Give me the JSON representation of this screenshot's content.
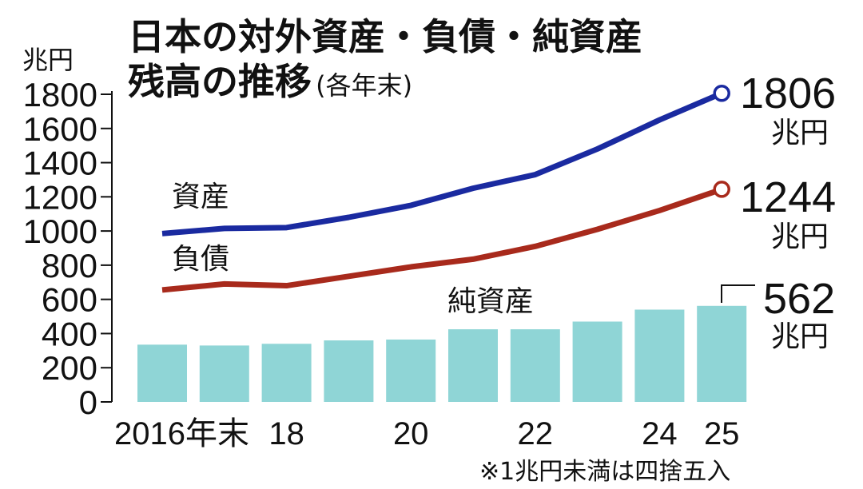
{
  "chart_data": {
    "type": "bar+line",
    "title_line1": "日本の対外資産・負債・純資産",
    "title_line2": "残高の推移",
    "title_suffix": "(各年末)",
    "ylabel": "兆円",
    "ylim": [
      0,
      1800
    ],
    "yticks": [
      0,
      200,
      400,
      600,
      800,
      1000,
      1200,
      1400,
      1600,
      1800
    ],
    "grid": false,
    "years": [
      2016,
      2017,
      2018,
      2019,
      2020,
      2021,
      2022,
      2023,
      2024,
      2025
    ],
    "x_tick_labels": [
      {
        "year": 2016,
        "label": "2016年末"
      },
      {
        "year": 2018,
        "label": "18"
      },
      {
        "year": 2020,
        "label": "20"
      },
      {
        "year": 2022,
        "label": "22"
      },
      {
        "year": 2024,
        "label": "24"
      },
      {
        "year": 2025,
        "label": "25"
      }
    ],
    "series": [
      {
        "name": "資産",
        "type": "line",
        "color": "#1a2aa0",
        "values": [
          985,
          1015,
          1020,
          1080,
          1150,
          1250,
          1330,
          1480,
          1650,
          1806
        ]
      },
      {
        "name": "負債",
        "type": "line",
        "color": "#a82a1c",
        "values": [
          655,
          690,
          680,
          735,
          790,
          835,
          910,
          1010,
          1120,
          1244
        ]
      },
      {
        "name": "純資産",
        "type": "bar",
        "color": "#8fd5d6",
        "values": [
          335,
          330,
          340,
          360,
          365,
          425,
          425,
          470,
          540,
          562
        ]
      }
    ],
    "end_labels": [
      {
        "value": "1806",
        "unit": "兆円"
      },
      {
        "value": "1244",
        "unit": "兆円"
      },
      {
        "value": "562",
        "unit": "兆円"
      }
    ],
    "footnote": "※1兆円未満は四捨五入"
  }
}
